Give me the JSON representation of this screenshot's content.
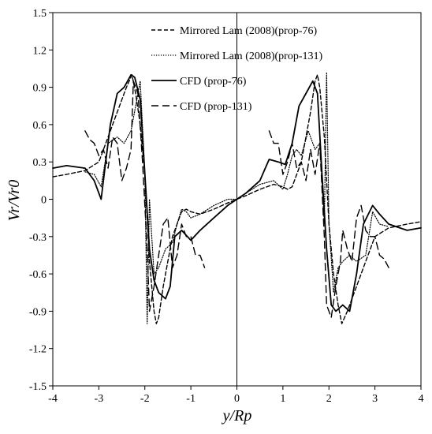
{
  "chart_data": {
    "type": "line",
    "xlabel": "y/Rp",
    "ylabel": "Vr/Vr0",
    "xlim": [
      -4,
      4
    ],
    "ylim": [
      -1.5,
      1.5
    ],
    "x_ticks": [
      "-4",
      "-3",
      "-2",
      "-1",
      "0",
      "1",
      "2",
      "3",
      "4"
    ],
    "y_ticks": [
      "-1.5",
      "-1.2",
      "-0.9",
      "-0.6",
      "-0.3",
      "0",
      "0.3",
      "0.6",
      "0.9",
      "1.2",
      "1.5"
    ],
    "grid": false,
    "legend_position": "top-right",
    "series": [
      {
        "name": "Mirrored Lam (2008)(prop-76)",
        "style": "dashed",
        "x": [
          -4.0,
          -3.7,
          -3.3,
          -3.0,
          -2.8,
          -2.6,
          -2.4,
          -2.28,
          -2.2,
          -2.1,
          -2.0,
          -1.9,
          -1.8,
          -1.75,
          -1.7,
          -1.6,
          -1.5,
          -1.4,
          -1.3,
          -1.25,
          -1.2,
          -1.1,
          -1.0,
          -0.8,
          -0.5,
          -0.2,
          0.0,
          0.2,
          0.5,
          0.8,
          1.0,
          1.1,
          1.2,
          1.25,
          1.3,
          1.4,
          1.5,
          1.6,
          1.7,
          1.75,
          1.8,
          1.9,
          2.0,
          2.1,
          2.2,
          2.28,
          2.4,
          2.6,
          2.8,
          3.0,
          3.3,
          3.7,
          4.0
        ],
        "y": [
          0.18,
          0.2,
          0.23,
          0.3,
          0.5,
          0.7,
          0.9,
          1.0,
          0.85,
          0.6,
          0.2,
          -0.5,
          -0.9,
          -1.0,
          -0.95,
          -0.7,
          -0.5,
          -0.3,
          -0.2,
          -0.15,
          -0.1,
          -0.08,
          -0.1,
          -0.12,
          -0.08,
          -0.03,
          0.0,
          0.03,
          0.08,
          0.12,
          0.1,
          0.08,
          0.1,
          0.15,
          0.2,
          0.3,
          0.5,
          0.7,
          0.95,
          1.0,
          0.9,
          0.5,
          -0.2,
          -0.6,
          -0.85,
          -1.0,
          -0.9,
          -0.7,
          -0.5,
          -0.3,
          -0.23,
          -0.2,
          -0.18
        ]
      },
      {
        "name": "Mirrored Lam (2008)(prop-131)",
        "style": "dotted",
        "x": [
          -3.3,
          -3.1,
          -2.95,
          -2.8,
          -2.6,
          -2.45,
          -2.3,
          -2.2,
          -2.1,
          -2.0,
          -1.95,
          -1.9,
          -1.8,
          -1.7,
          -1.55,
          -1.4,
          -1.3,
          -1.2,
          -1.1,
          -1.0,
          -0.8,
          -0.5,
          -0.2,
          0.0,
          0.2,
          0.5,
          0.8,
          1.0,
          1.1,
          1.2,
          1.3,
          1.4,
          1.55,
          1.7,
          1.8,
          1.9,
          1.95,
          2.0,
          2.1,
          2.2,
          2.3,
          2.45,
          2.6,
          2.8,
          2.95,
          3.1,
          3.3
        ],
        "y": [
          0.22,
          0.2,
          0.1,
          0.45,
          0.5,
          0.45,
          0.55,
          0.75,
          0.95,
          0.2,
          -1.0,
          0.0,
          -0.6,
          -0.55,
          -0.4,
          -0.35,
          -0.2,
          -0.08,
          -0.1,
          -0.15,
          -0.12,
          -0.05,
          0.0,
          0.0,
          0.05,
          0.12,
          0.15,
          0.08,
          0.2,
          0.35,
          0.4,
          0.35,
          0.55,
          0.4,
          0.45,
          -0.2,
          1.02,
          -0.2,
          -0.75,
          -0.55,
          -0.5,
          -0.45,
          -0.5,
          -0.45,
          -0.1,
          -0.2,
          -0.22
        ]
      },
      {
        "name": "CFD (prop-76)",
        "style": "solid",
        "x": [
          -4.0,
          -3.7,
          -3.3,
          -3.1,
          -2.95,
          -2.85,
          -2.75,
          -2.6,
          -2.45,
          -2.3,
          -2.22,
          -2.1,
          -2.0,
          -1.9,
          -1.8,
          -1.7,
          -1.55,
          -1.45,
          -1.35,
          -1.2,
          -1.0,
          -0.8,
          -0.5,
          -0.2,
          0.0,
          0.2,
          0.5,
          0.7,
          0.9,
          1.05,
          1.2,
          1.35,
          1.5,
          1.65,
          1.75,
          1.85,
          1.95,
          2.05,
          2.15,
          2.3,
          2.45,
          2.6,
          2.75,
          2.95,
          3.1,
          3.3,
          3.7,
          4.0
        ],
        "y": [
          0.25,
          0.27,
          0.25,
          0.15,
          0.0,
          0.3,
          0.6,
          0.85,
          0.9,
          1.0,
          0.98,
          0.8,
          0.2,
          -0.4,
          -0.65,
          -0.75,
          -0.8,
          -0.7,
          -0.3,
          -0.25,
          -0.33,
          -0.25,
          -0.15,
          -0.05,
          0.0,
          0.05,
          0.15,
          0.32,
          0.3,
          0.28,
          0.45,
          0.75,
          0.85,
          0.95,
          0.85,
          0.2,
          -0.4,
          -0.85,
          -0.9,
          -0.85,
          -0.9,
          -0.6,
          -0.2,
          -0.05,
          -0.12,
          -0.2,
          -0.25,
          -0.23
        ]
      },
      {
        "name": "CFD (prop-131)",
        "style": "long-dashed",
        "x": [
          -3.3,
          -3.2,
          -3.1,
          -3.0,
          -2.9,
          -2.8,
          -2.7,
          -2.6,
          -2.5,
          -2.4,
          -2.3,
          -2.25,
          -2.15,
          -2.05,
          -1.95,
          -1.9,
          -1.8,
          -1.7,
          -1.6,
          -1.5,
          -1.4,
          -1.3,
          -1.2,
          -1.1,
          -1.0,
          -0.9,
          -0.8,
          -0.7,
          0.7,
          0.8,
          0.9,
          1.0,
          1.1,
          1.2,
          1.3,
          1.4,
          1.5,
          1.6,
          1.7,
          1.8,
          1.9,
          1.95,
          2.05,
          2.15,
          2.25,
          2.3,
          2.4,
          2.5,
          2.6,
          2.7,
          2.8,
          2.9,
          3.0,
          3.1,
          3.2,
          3.3
        ],
        "y": [
          0.55,
          0.48,
          0.45,
          0.35,
          0.4,
          0.25,
          0.5,
          0.45,
          0.15,
          0.25,
          0.4,
          0.95,
          0.85,
          0.3,
          -0.4,
          -0.9,
          -0.7,
          -0.45,
          -0.2,
          -0.15,
          -0.55,
          -0.45,
          -0.2,
          -0.3,
          -0.3,
          -0.45,
          -0.45,
          -0.55,
          0.55,
          0.45,
          0.45,
          0.2,
          0.3,
          0.45,
          0.25,
          0.3,
          0.15,
          0.4,
          0.2,
          0.45,
          -0.3,
          -0.85,
          -0.95,
          -0.7,
          -0.5,
          -0.25,
          -0.4,
          -0.5,
          -0.15,
          -0.05,
          -0.25,
          -0.3,
          -0.3,
          -0.45,
          -0.48,
          -0.55
        ]
      }
    ]
  }
}
